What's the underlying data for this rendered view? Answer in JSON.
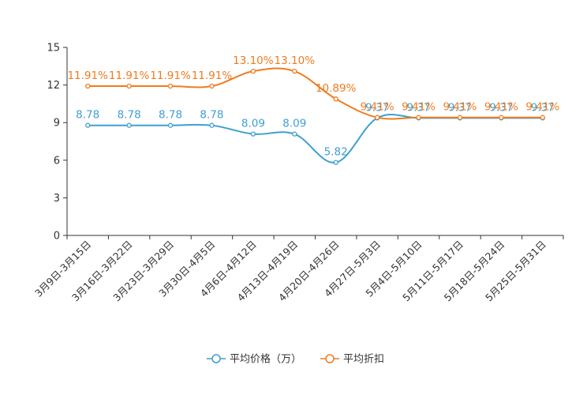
{
  "chart_data": {
    "type": "line",
    "title": "",
    "xlabel": "",
    "ylabel": "",
    "ylim": [
      0,
      15
    ],
    "yticks": [
      "0",
      "3",
      "6",
      "9",
      "12",
      "15"
    ],
    "grid": false,
    "legend_position": "bottom-center",
    "categories": [
      "3月9日-3月15日",
      "3月16日-3月22日",
      "3月23日-3月29日",
      "3月30日-4月5日",
      "4月6日-4月12日",
      "4月13日-4月19日",
      "4月20日-4月26日",
      "4月27日-5月3日",
      "5月4日-5月10日",
      "5月11日-5月17日",
      "5月18日-5月24日",
      "5月25日-5月31日"
    ],
    "series": [
      {
        "name": "平均价格（万）",
        "color": "#3d9fd0",
        "values": [
          8.78,
          8.78,
          8.78,
          8.78,
          8.09,
          8.09,
          5.82,
          9.37,
          9.37,
          9.37,
          9.37,
          9.37
        ],
        "labels": [
          "8.78",
          "8.78",
          "8.78",
          "8.78",
          "8.09",
          "8.09",
          "5.82",
          "9.37",
          "9.37",
          "9.37",
          "9.37",
          "9.37"
        ]
      },
      {
        "name": "平均折扣",
        "color": "#f07b1f",
        "values": [
          11.91,
          11.91,
          11.91,
          11.91,
          13.1,
          13.1,
          10.89,
          9.41,
          9.41,
          9.41,
          9.41,
          9.41
        ],
        "labels": [
          "11.91%",
          "11.91%",
          "11.91%",
          "11.91%",
          "13.10%",
          "13.10%",
          "10.89%",
          "9.41%",
          "9.41%",
          "9.41%",
          "9.41%",
          "9.41%"
        ]
      }
    ]
  }
}
